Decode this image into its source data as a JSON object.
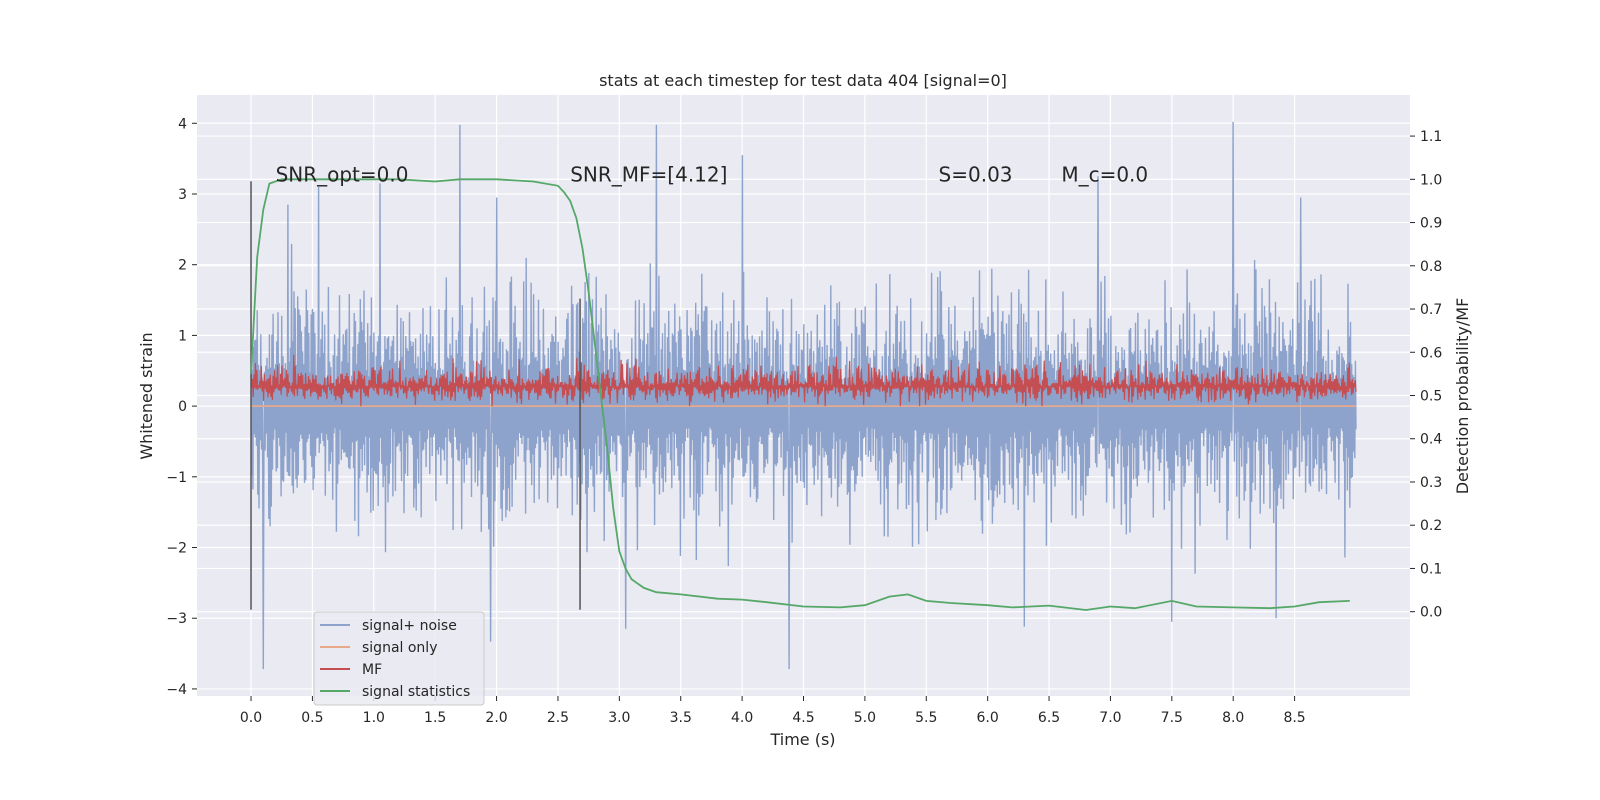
{
  "chart_data": {
    "type": "line",
    "title": "stats at each timestep for test data 404 [signal=0]",
    "xlabel": "Time (s)",
    "ylabel": "Whitened strain",
    "ylabel_right": "Detection probability/MF",
    "xlim": [
      -0.44,
      9.44
    ],
    "ylim": [
      -4.1,
      4.4
    ],
    "ylim_right": [
      -0.195,
      1.195
    ],
    "xticks": [
      0.0,
      0.5,
      1.0,
      1.5,
      2.0,
      2.5,
      3.0,
      3.5,
      4.0,
      4.5,
      5.0,
      5.5,
      6.0,
      6.5,
      7.0,
      7.5,
      8.0,
      8.5
    ],
    "xtick_labels": [
      "0.0",
      "0.5",
      "1.0",
      "1.5",
      "2.0",
      "2.5",
      "3.0",
      "3.5",
      "4.0",
      "4.5",
      "5.0",
      "5.5",
      "6.0",
      "6.5",
      "7.0",
      "7.5",
      "8.0",
      "8.5"
    ],
    "yticks": [
      4,
      3,
      2,
      1,
      0,
      -1,
      -2,
      -3,
      -4
    ],
    "ytick_labels": [
      "4",
      "3",
      "2",
      "1",
      "0",
      "−1",
      "−2",
      "−3",
      "−4"
    ],
    "yticks_right": [
      1.1,
      1.0,
      0.9,
      0.8,
      0.7,
      0.6,
      0.5,
      0.4,
      0.3,
      0.2,
      0.1,
      0.0
    ],
    "ytick_labels_right": [
      "1.1",
      "1.0",
      "0.9",
      "0.8",
      "0.7",
      "0.6",
      "0.5",
      "0.4",
      "0.3",
      "0.2",
      "0.1",
      "0.0"
    ],
    "grid": true,
    "legend_position": "lower-left",
    "legend": [
      {
        "label": "signal+ noise",
        "color": "#8ea3cc"
      },
      {
        "label": "signal only",
        "color": "#e8a88a"
      },
      {
        "label": "MF",
        "color": "#c44e52"
      },
      {
        "label": "signal statistics",
        "color": "#55a868"
      }
    ],
    "annotations": [
      {
        "text": "SNR_opt=0.0",
        "x": 0.2,
        "y": 3.18
      },
      {
        "text": "SNR_MF=[4.12]",
        "x": 2.6,
        "y": 3.18
      },
      {
        "text": "S=0.03",
        "x": 5.6,
        "y": 3.18
      },
      {
        "text": "M_c=0.0",
        "x": 6.6,
        "y": 3.18
      }
    ],
    "vertical_markers": [
      {
        "x": 0.0,
        "ymin": -2.88,
        "ymax": 3.18
      },
      {
        "x": 2.68,
        "ymin": -2.88,
        "ymax": 1.52
      }
    ],
    "noise_series": {
      "name": "signal+ noise",
      "x_range": [
        0.0,
        9.0
      ],
      "samples": 1800,
      "peaks_up": [
        [
          1.7,
          3.98
        ],
        [
          3.3,
          3.98
        ],
        [
          8.0,
          4.02
        ],
        [
          4.0,
          3.55
        ],
        [
          0.3,
          2.85
        ],
        [
          0.55,
          3.1
        ],
        [
          1.05,
          3.15
        ],
        [
          2.0,
          2.95
        ],
        [
          6.9,
          3.25
        ],
        [
          8.55,
          2.95
        ]
      ],
      "peaks_down": [
        [
          0.1,
          -3.72
        ],
        [
          4.38,
          -3.72
        ],
        [
          1.95,
          -3.33
        ],
        [
          6.3,
          -3.12
        ],
        [
          3.05,
          -3.15
        ],
        [
          7.5,
          -3.05
        ],
        [
          8.35,
          -3.0
        ]
      ]
    },
    "signal_only": {
      "name": "signal only",
      "x_range": [
        0.0,
        9.0
      ],
      "value": 0.0
    },
    "mf_series": {
      "name": "MF",
      "x_range": [
        0.0,
        9.0
      ],
      "mean": 0.28,
      "lower": 0.0,
      "upper": 0.95
    },
    "stat_series": {
      "name": "signal statistics",
      "x": [
        0.0,
        0.05,
        0.1,
        0.15,
        0.25,
        0.5,
        1.0,
        1.2,
        1.5,
        1.7,
        2.0,
        2.3,
        2.5,
        2.55,
        2.6,
        2.65,
        2.7,
        2.75,
        2.8,
        2.85,
        2.9,
        2.95,
        3.0,
        3.05,
        3.1,
        3.2,
        3.3,
        3.5,
        3.8,
        4.0,
        4.2,
        4.5,
        4.8,
        5.0,
        5.2,
        5.35,
        5.5,
        5.7,
        6.0,
        6.2,
        6.5,
        6.8,
        7.0,
        7.2,
        7.5,
        7.7,
        8.0,
        8.3,
        8.5,
        8.7,
        8.95
      ],
      "y": [
        0.55,
        0.82,
        0.93,
        0.99,
        1.0,
        1.0,
        1.0,
        1.0,
        0.995,
        1.0,
        1.0,
        0.995,
        0.985,
        0.97,
        0.95,
        0.91,
        0.84,
        0.74,
        0.62,
        0.5,
        0.38,
        0.24,
        0.14,
        0.1,
        0.075,
        0.055,
        0.045,
        0.04,
        0.03,
        0.028,
        0.022,
        0.012,
        0.01,
        0.015,
        0.035,
        0.04,
        0.025,
        0.02,
        0.015,
        0.01,
        0.014,
        0.004,
        0.012,
        0.008,
        0.025,
        0.012,
        0.01,
        0.008,
        0.012,
        0.022,
        0.025
      ]
    }
  }
}
